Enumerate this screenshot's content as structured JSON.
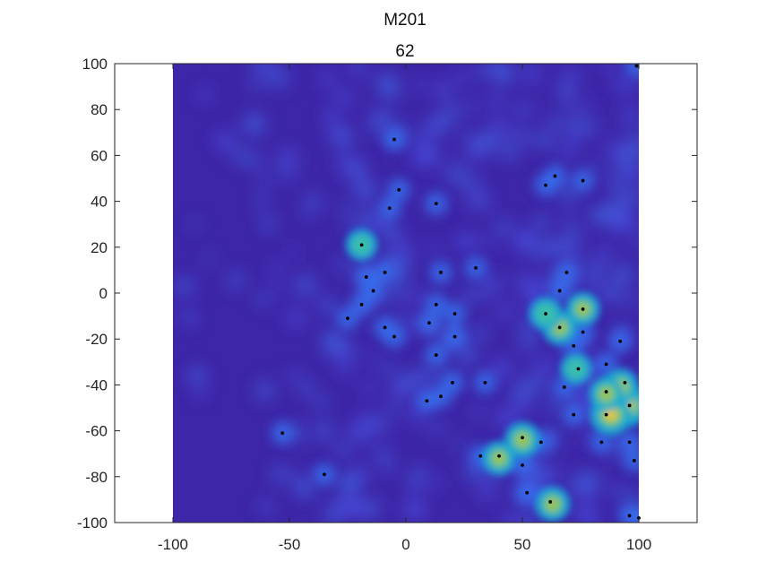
{
  "chart_data": {
    "type": "heatmap",
    "title": "M201",
    "subtitle": "62",
    "xlabel": "",
    "ylabel": "",
    "xlim": [
      -125,
      125
    ],
    "ylim": [
      -100,
      100
    ],
    "xticks": [
      "-100",
      "-50",
      "0",
      "50",
      "100"
    ],
    "yticks": [
      "100",
      "80",
      "60",
      "40",
      "20",
      "0",
      "-20",
      "-40",
      "-60",
      "-80",
      "-100"
    ],
    "map_extent_x": [
      -100,
      100
    ],
    "map_extent_y": [
      -100,
      100
    ],
    "colormap": "parula",
    "background_color": "#3e26a8",
    "point_color": "#000000",
    "hotspots": [
      {
        "x": 95,
        "y": -49,
        "intensity": 1.0
      },
      {
        "x": 88,
        "y": -53,
        "intensity": 0.95
      },
      {
        "x": 92,
        "y": -41,
        "intensity": 0.65
      },
      {
        "x": 86,
        "y": -44,
        "intensity": 0.55
      },
      {
        "x": 50,
        "y": -64,
        "intensity": 0.6
      },
      {
        "x": 40,
        "y": -72,
        "intensity": 0.5
      },
      {
        "x": 63,
        "y": -92,
        "intensity": 0.55
      },
      {
        "x": 66,
        "y": -15,
        "intensity": 0.55
      },
      {
        "x": 76,
        "y": -7,
        "intensity": 0.5
      },
      {
        "x": 60,
        "y": -9,
        "intensity": 0.45
      },
      {
        "x": 73,
        "y": -33,
        "intensity": 0.35
      },
      {
        "x": -19,
        "y": 21,
        "intensity": 0.35
      }
    ],
    "points": [
      {
        "x": -5,
        "y": 67
      },
      {
        "x": -3,
        "y": 45
      },
      {
        "x": -7,
        "y": 37
      },
      {
        "x": 13,
        "y": 39
      },
      {
        "x": 60,
        "y": 47
      },
      {
        "x": 64,
        "y": 51
      },
      {
        "x": 76,
        "y": 49
      },
      {
        "x": -19,
        "y": 21
      },
      {
        "x": -9,
        "y": 9
      },
      {
        "x": -17,
        "y": 7
      },
      {
        "x": -14,
        "y": 1
      },
      {
        "x": 15,
        "y": 9
      },
      {
        "x": 30,
        "y": 11
      },
      {
        "x": 69,
        "y": 9
      },
      {
        "x": 66,
        "y": 1
      },
      {
        "x": -19,
        "y": -5
      },
      {
        "x": -25,
        "y": -11
      },
      {
        "x": 13,
        "y": -5
      },
      {
        "x": 21,
        "y": -9
      },
      {
        "x": 10,
        "y": -13
      },
      {
        "x": -9,
        "y": -15
      },
      {
        "x": -5,
        "y": -19
      },
      {
        "x": 21,
        "y": -19
      },
      {
        "x": 60,
        "y": -9
      },
      {
        "x": 66,
        "y": -15
      },
      {
        "x": 76,
        "y": -7
      },
      {
        "x": 76,
        "y": -17
      },
      {
        "x": 72,
        "y": -23
      },
      {
        "x": 92,
        "y": -21
      },
      {
        "x": 13,
        "y": -27
      },
      {
        "x": 74,
        "y": -33
      },
      {
        "x": 86,
        "y": -31
      },
      {
        "x": 20,
        "y": -39
      },
      {
        "x": 34,
        "y": -39
      },
      {
        "x": 68,
        "y": -41
      },
      {
        "x": 94,
        "y": -39
      },
      {
        "x": 86,
        "y": -43
      },
      {
        "x": 15,
        "y": -45
      },
      {
        "x": 9,
        "y": -47
      },
      {
        "x": 96,
        "y": -49
      },
      {
        "x": 86,
        "y": -53
      },
      {
        "x": 72,
        "y": -53
      },
      {
        "x": -53,
        "y": -61
      },
      {
        "x": 50,
        "y": -63
      },
      {
        "x": 58,
        "y": -65
      },
      {
        "x": 84,
        "y": -65
      },
      {
        "x": 96,
        "y": -65
      },
      {
        "x": 32,
        "y": -71
      },
      {
        "x": 40,
        "y": -71
      },
      {
        "x": 98,
        "y": -73
      },
      {
        "x": 50,
        "y": -75
      },
      {
        "x": -35,
        "y": -79
      },
      {
        "x": 52,
        "y": -87
      },
      {
        "x": 62,
        "y": -91
      },
      {
        "x": 96,
        "y": -97
      },
      {
        "x": 100,
        "y": -98
      },
      {
        "x": 99,
        "y": 99
      }
    ]
  }
}
